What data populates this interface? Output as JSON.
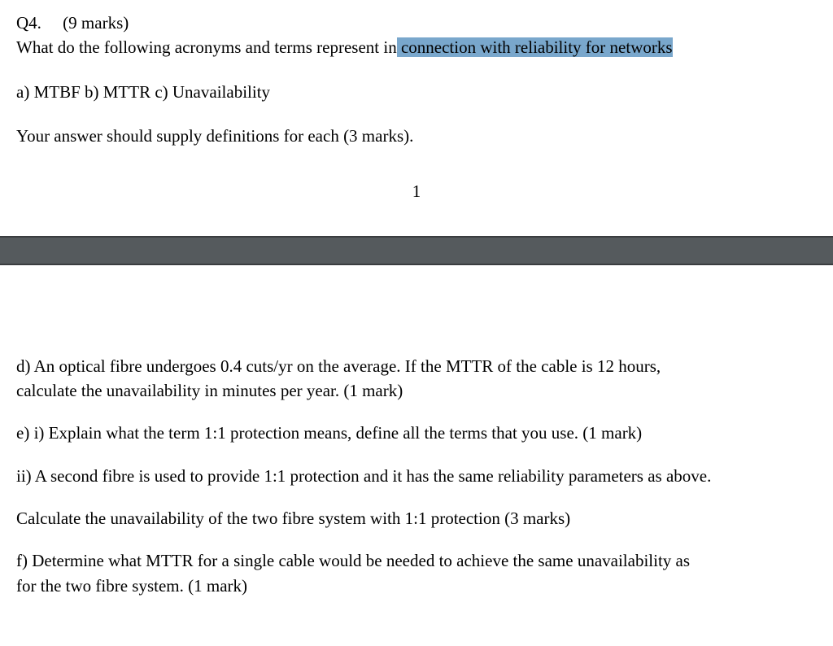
{
  "header": {
    "q_number": "Q4.",
    "marks": "(9 marks)"
  },
  "intro": {
    "pre": "What do the following acronyms  and terms represent in",
    "highlighted": " connection with reliability for networks"
  },
  "parts_abc": "a) MTBF   b) MTTR   c) Unavailability",
  "instruction": "Your answer should supply definitions for each (3 marks).",
  "page_number": "1",
  "d": {
    "line1": "d) An optical fibre undergoes 0.4 cuts/yr on the average. If the MTTR of the cable is 12 hours,",
    "line2": "calculate the unavailability in minutes per year. (1 mark)"
  },
  "e_i": "e)  i) Explain what the term 1:1 protection means, define all the terms that you use. (1 mark)",
  "e_ii": "ii) A second fibre is used to provide 1:1 protection and it has the same reliability parameters as above.",
  "e_calc": "Calculate the unavailability of the two fibre system with 1:1 protection  (3 marks)",
  "f": {
    "line1": "f) Determine what MTTR for a single cable would be needed to achieve the same unavailability as",
    "line2": "for the two fibre system. (1 mark)"
  }
}
